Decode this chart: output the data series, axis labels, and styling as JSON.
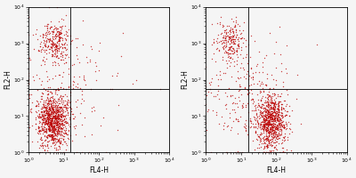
{
  "xlim_log": [
    0,
    4
  ],
  "ylim_log": [
    0,
    4
  ],
  "xlabel": "FL4-H",
  "ylabel": "FL2-H",
  "quadrant_x_1": 1.2,
  "quadrant_y_1": 1.75,
  "quadrant_x_2": 1.2,
  "quadrant_y_2": 1.75,
  "dot_color_dense": "#bb0000",
  "dot_color_sparse": "#cc3333",
  "dot_alpha_dense": 0.7,
  "dot_alpha_sparse": 0.45,
  "dot_size": 1.0,
  "background_color": "#f5f5f5",
  "tick_label_fontsize": 4.5,
  "axis_label_fontsize": 5.5,
  "plot1": {
    "main_cluster": {
      "x_log_mean": 0.7,
      "x_log_std": 0.22,
      "y_log_mean": 0.9,
      "y_log_std": 0.35,
      "n": 1000
    },
    "upper_cluster": {
      "x_log_mean": 0.75,
      "x_log_std": 0.2,
      "y_log_mean": 3.0,
      "y_log_std": 0.28,
      "n": 280
    },
    "sparse": {
      "x_log_mean": 1.0,
      "x_log_std": 0.8,
      "y_log_mean": 1.8,
      "y_log_std": 0.9,
      "n": 200
    }
  },
  "plot2": {
    "main_cluster": {
      "x_log_mean": 1.85,
      "x_log_std": 0.22,
      "y_log_mean": 0.85,
      "y_log_std": 0.38,
      "n": 900
    },
    "upper_cluster": {
      "x_log_mean": 0.7,
      "x_log_std": 0.2,
      "y_log_mean": 3.05,
      "y_log_std": 0.28,
      "n": 220
    },
    "sparse": {
      "x_log_mean": 1.2,
      "x_log_std": 0.7,
      "y_log_mean": 1.5,
      "y_log_std": 0.8,
      "n": 250
    }
  }
}
